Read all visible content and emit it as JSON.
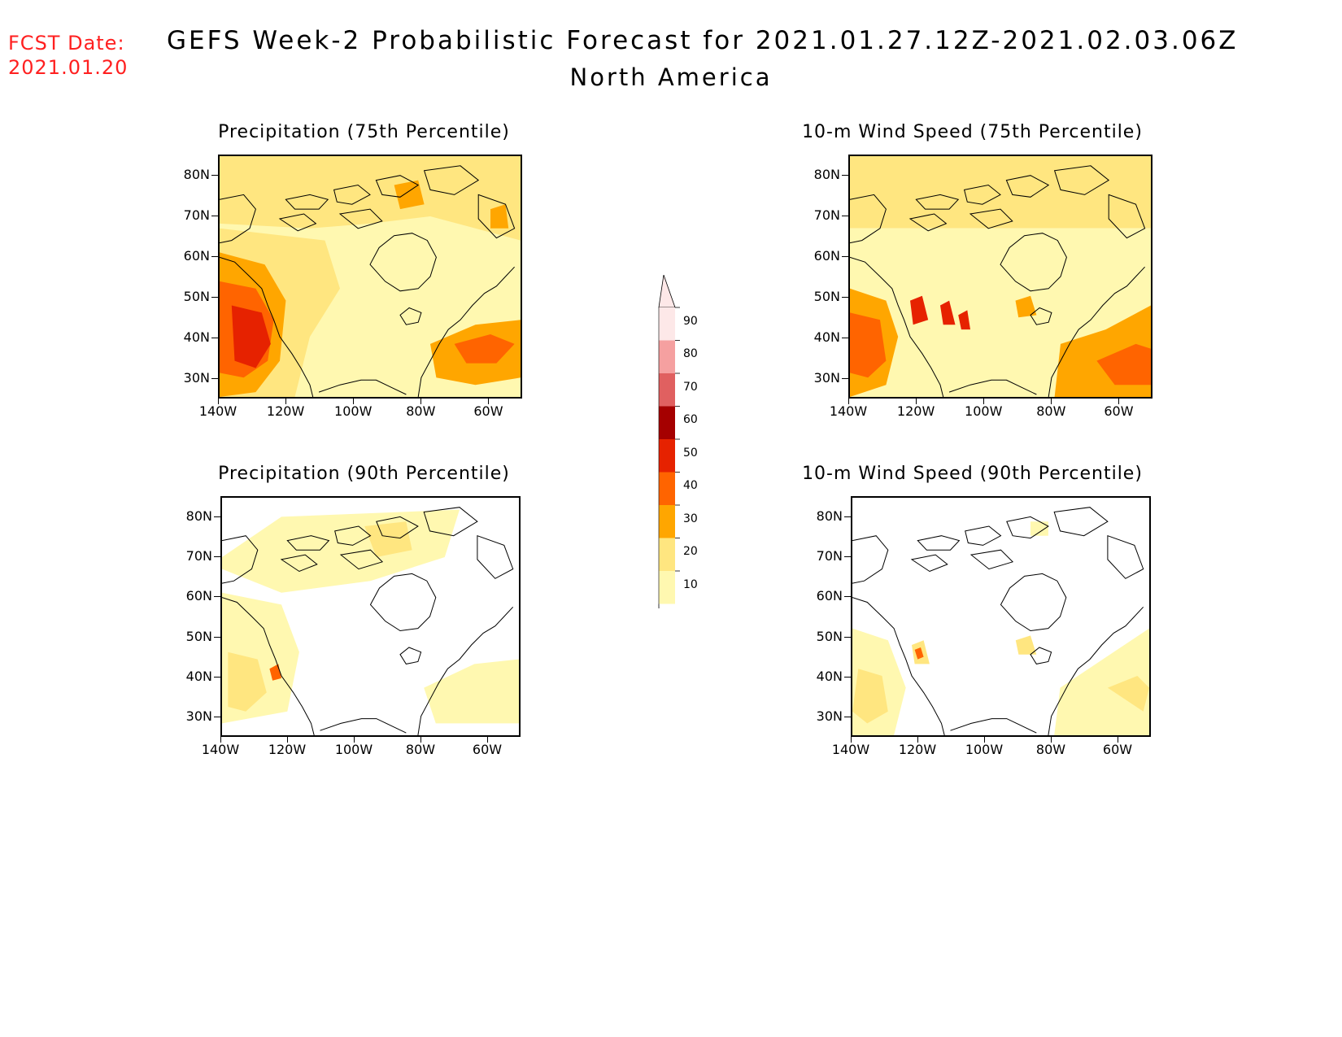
{
  "header": {
    "fcst_label": "FCST Date:",
    "fcst_date": "2021.01.20",
    "title": "GEFS Week-2 Probabilistic Forecast for 2021.01.27.12Z-2021.02.03.06Z",
    "subtitle": "North America"
  },
  "panels": [
    {
      "title": "Precipitation (75th Percentile)"
    },
    {
      "title": "10-m Wind Speed (75th Percentile)"
    },
    {
      "title": "Precipitation (90th Percentile)"
    },
    {
      "title": "10-m Wind Speed (90th Percentile)"
    }
  ],
  "axes": {
    "lat_labels": [
      "80N",
      "70N",
      "60N",
      "50N",
      "40N",
      "30N"
    ],
    "lon_labels": [
      "140W",
      "120W",
      "100W",
      "80W",
      "60W"
    ]
  },
  "colorbar": {
    "levels": [
      "10",
      "20",
      "30",
      "40",
      "50",
      "60",
      "70",
      "80",
      "90"
    ],
    "colors": [
      "#fff8b0",
      "#ffe680",
      "#ffa600",
      "#ff6400",
      "#e62200",
      "#a50000",
      "#e06060",
      "#f5a0a0",
      "#fde8e8"
    ]
  }
}
